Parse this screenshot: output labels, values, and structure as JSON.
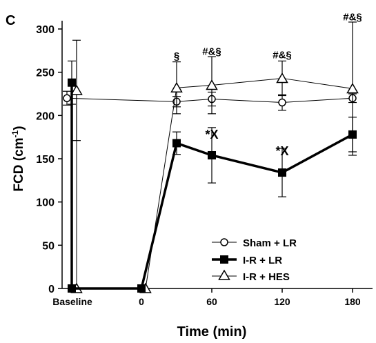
{
  "chart_data": {
    "type": "line",
    "panel_label": "C",
    "ylabel": "FCD (cm",
    "ylabel_sup": "-1",
    "ylabel_close": ")",
    "xlabel": "Time (min)",
    "ylim": [
      0,
      300
    ],
    "yticks": [
      0,
      50,
      100,
      150,
      200,
      250,
      300
    ],
    "xticks": [
      {
        "label": "Baseline",
        "x": "baseline"
      },
      {
        "label": "0",
        "x": 0
      },
      {
        "label": "60",
        "x": 60
      },
      {
        "label": "120",
        "x": 120
      },
      {
        "label": "180",
        "x": 180
      }
    ],
    "series": [
      {
        "name": "Sham + LR",
        "marker": "circle-open",
        "line": "thin",
        "points": [
          {
            "x": "baseline",
            "y": 220,
            "err": 8
          },
          {
            "x": 30,
            "y": 216,
            "err": 6
          },
          {
            "x": 60,
            "y": 219,
            "err": 8
          },
          {
            "x": 120,
            "y": 215,
            "err": 9
          },
          {
            "x": 180,
            "y": 220,
            "err": 5
          }
        ]
      },
      {
        "name": "I-R + LR",
        "marker": "square-filled",
        "line": "thick",
        "points": [
          {
            "x": "baseline",
            "y": 238,
            "err": 25
          },
          {
            "x": "baseline",
            "y": 0,
            "err": 0
          },
          {
            "x": 0,
            "y": 0,
            "err": 0
          },
          {
            "x": 30,
            "y": 168,
            "err": 13
          },
          {
            "x": 60,
            "y": 154,
            "err": 32
          },
          {
            "x": 120,
            "y": 134,
            "err": 28
          },
          {
            "x": 180,
            "y": 178,
            "err": 20
          }
        ]
      },
      {
        "name": "I-R + HES",
        "marker": "triangle-open",
        "line": "thin",
        "points": [
          {
            "x": "baseline",
            "y": 229,
            "err": 58
          },
          {
            "x": "baseline",
            "y": 0,
            "err": 0
          },
          {
            "x": 0,
            "y": 0,
            "err": 0
          },
          {
            "x": 30,
            "y": 232,
            "err": 30
          },
          {
            "x": 60,
            "y": 235,
            "err": 33
          },
          {
            "x": 120,
            "y": 243,
            "err": 20
          },
          {
            "x": 180,
            "y": 231,
            "err": 77
          }
        ]
      }
    ],
    "annotations": [
      {
        "text": "§",
        "x": 30,
        "y": 265
      },
      {
        "text": "#&§",
        "x": 60,
        "y": 270
      },
      {
        "text": "#&§",
        "x": 120,
        "y": 266
      },
      {
        "text": "#&§",
        "x": 180,
        "y": 310
      },
      {
        "text": "*X",
        "x": 60,
        "y": 173
      },
      {
        "text": "*X",
        "x": 120,
        "y": 154
      }
    ],
    "legend": {
      "position": "bottom-right"
    },
    "grid": false
  }
}
